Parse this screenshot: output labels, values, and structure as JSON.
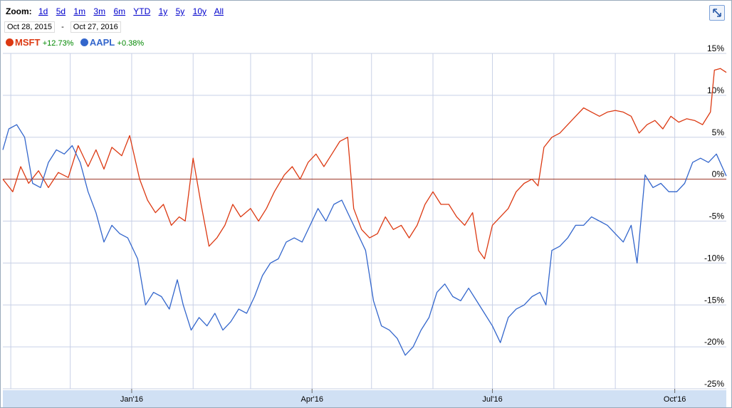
{
  "zoom": {
    "label": "Zoom:",
    "options": [
      "1d",
      "5d",
      "1m",
      "3m",
      "6m",
      "YTD",
      "1y",
      "5y",
      "10y",
      "All"
    ]
  },
  "range": {
    "start": "Oct 28, 2015",
    "separator": "-",
    "end": "Oct 27, 2016"
  },
  "legend": [
    {
      "symbol": "MSFT",
      "change": "+12.73%",
      "color": "#dc3912"
    },
    {
      "symbol": "AAPL",
      "change": "+0.38%",
      "color": "#3366cc"
    }
  ],
  "expand_icon": "expand-arrows-icon",
  "chart_data": {
    "type": "line",
    "y_unit": "%",
    "ylim": [
      -25,
      15
    ],
    "yticks": [
      {
        "v": 15,
        "label": "15%"
      },
      {
        "v": 10,
        "label": "10%"
      },
      {
        "v": 5,
        "label": "5%"
      },
      {
        "v": 0,
        "label": "0%"
      },
      {
        "v": -5,
        "label": "-5%"
      },
      {
        "v": -10,
        "label": "-10%"
      },
      {
        "v": -15,
        "label": "-15%"
      },
      {
        "v": -20,
        "label": "-20%"
      },
      {
        "v": -25,
        "label": "-25%"
      }
    ],
    "xlim": [
      "2015-10-28",
      "2016-10-27"
    ],
    "xticks": [
      {
        "date": "2016-01-01",
        "label": "Jan'16"
      },
      {
        "date": "2016-04-01",
        "label": "Apr'16"
      },
      {
        "date": "2016-07-01",
        "label": "Jul'16"
      },
      {
        "date": "2016-10-01",
        "label": "Oct'16"
      }
    ],
    "grid": true,
    "series": [
      {
        "name": "MSFT",
        "color": "#dc3912",
        "points": [
          [
            "2015-10-28",
            0
          ],
          [
            "2015-11-02",
            -1.5
          ],
          [
            "2015-11-06",
            1.5
          ],
          [
            "2015-11-10",
            -0.5
          ],
          [
            "2015-11-15",
            1.0
          ],
          [
            "2015-11-20",
            -1.0
          ],
          [
            "2015-11-25",
            0.8
          ],
          [
            "2015-11-30",
            0.2
          ],
          [
            "2015-12-05",
            4.0
          ],
          [
            "2015-12-10",
            1.5
          ],
          [
            "2015-12-14",
            3.5
          ],
          [
            "2015-12-18",
            1.2
          ],
          [
            "2015-12-22",
            3.8
          ],
          [
            "2015-12-27",
            2.8
          ],
          [
            "2015-12-31",
            5.2
          ],
          [
            "2016-01-05",
            0
          ],
          [
            "2016-01-09",
            -2.5
          ],
          [
            "2016-01-13",
            -4.0
          ],
          [
            "2016-01-17",
            -3.0
          ],
          [
            "2016-01-21",
            -5.5
          ],
          [
            "2016-01-25",
            -4.5
          ],
          [
            "2016-01-28",
            -5.0
          ],
          [
            "2016-02-01",
            2.5
          ],
          [
            "2016-02-05",
            -3.0
          ],
          [
            "2016-02-09",
            -8.0
          ],
          [
            "2016-02-13",
            -7.0
          ],
          [
            "2016-02-17",
            -5.5
          ],
          [
            "2016-02-21",
            -3.0
          ],
          [
            "2016-02-25",
            -4.5
          ],
          [
            "2016-03-01",
            -3.5
          ],
          [
            "2016-03-05",
            -5.0
          ],
          [
            "2016-03-09",
            -3.5
          ],
          [
            "2016-03-13",
            -1.5
          ],
          [
            "2016-03-18",
            0.5
          ],
          [
            "2016-03-22",
            1.5
          ],
          [
            "2016-03-26",
            0
          ],
          [
            "2016-03-30",
            2.0
          ],
          [
            "2016-04-03",
            3.0
          ],
          [
            "2016-04-07",
            1.5
          ],
          [
            "2016-04-11",
            3.0
          ],
          [
            "2016-04-15",
            4.5
          ],
          [
            "2016-04-19",
            5.0
          ],
          [
            "2016-04-22",
            -3.5
          ],
          [
            "2016-04-26",
            -6.0
          ],
          [
            "2016-04-30",
            -7.0
          ],
          [
            "2016-05-04",
            -6.5
          ],
          [
            "2016-05-08",
            -4.5
          ],
          [
            "2016-05-12",
            -6.0
          ],
          [
            "2016-05-16",
            -5.5
          ],
          [
            "2016-05-20",
            -7.0
          ],
          [
            "2016-05-24",
            -5.5
          ],
          [
            "2016-05-28",
            -3.0
          ],
          [
            "2016-06-01",
            -1.5
          ],
          [
            "2016-06-05",
            -3.0
          ],
          [
            "2016-06-09",
            -3.0
          ],
          [
            "2016-06-13",
            -4.5
          ],
          [
            "2016-06-17",
            -5.5
          ],
          [
            "2016-06-21",
            -4.0
          ],
          [
            "2016-06-24",
            -8.5
          ],
          [
            "2016-06-27",
            -9.5
          ],
          [
            "2016-07-01",
            -5.5
          ],
          [
            "2016-07-05",
            -4.5
          ],
          [
            "2016-07-09",
            -3.5
          ],
          [
            "2016-07-13",
            -1.5
          ],
          [
            "2016-07-17",
            -0.5
          ],
          [
            "2016-07-21",
            0
          ],
          [
            "2016-07-24",
            -0.8
          ],
          [
            "2016-07-27",
            3.8
          ],
          [
            "2016-07-31",
            5.0
          ],
          [
            "2016-08-04",
            5.5
          ],
          [
            "2016-08-08",
            6.5
          ],
          [
            "2016-08-12",
            7.5
          ],
          [
            "2016-08-16",
            8.5
          ],
          [
            "2016-08-20",
            8.0
          ],
          [
            "2016-08-24",
            7.5
          ],
          [
            "2016-08-28",
            8.0
          ],
          [
            "2016-09-01",
            8.2
          ],
          [
            "2016-09-05",
            8.0
          ],
          [
            "2016-09-09",
            7.5
          ],
          [
            "2016-09-13",
            5.5
          ],
          [
            "2016-09-17",
            6.5
          ],
          [
            "2016-09-21",
            7.0
          ],
          [
            "2016-09-25",
            6.0
          ],
          [
            "2016-09-29",
            7.5
          ],
          [
            "2016-10-03",
            6.8
          ],
          [
            "2016-10-07",
            7.2
          ],
          [
            "2016-10-11",
            7.0
          ],
          [
            "2016-10-15",
            6.5
          ],
          [
            "2016-10-19",
            8.0
          ],
          [
            "2016-10-21",
            13.0
          ],
          [
            "2016-10-24",
            13.2
          ],
          [
            "2016-10-27",
            12.73
          ]
        ]
      },
      {
        "name": "AAPL",
        "color": "#3366cc",
        "points": [
          [
            "2015-10-28",
            3.5
          ],
          [
            "2015-10-31",
            6.0
          ],
          [
            "2015-11-04",
            6.5
          ],
          [
            "2015-11-08",
            5.0
          ],
          [
            "2015-11-12",
            -0.5
          ],
          [
            "2015-11-16",
            -1.0
          ],
          [
            "2015-11-20",
            2.0
          ],
          [
            "2015-11-24",
            3.5
          ],
          [
            "2015-11-28",
            3.0
          ],
          [
            "2015-12-02",
            4.0
          ],
          [
            "2015-12-06",
            2.0
          ],
          [
            "2015-12-10",
            -1.5
          ],
          [
            "2015-12-14",
            -4.0
          ],
          [
            "2015-12-18",
            -7.5
          ],
          [
            "2015-12-22",
            -5.5
          ],
          [
            "2015-12-26",
            -6.5
          ],
          [
            "2015-12-30",
            -7.0
          ],
          [
            "2016-01-04",
            -9.5
          ],
          [
            "2016-01-08",
            -15.0
          ],
          [
            "2016-01-12",
            -13.5
          ],
          [
            "2016-01-16",
            -14.0
          ],
          [
            "2016-01-20",
            -15.5
          ],
          [
            "2016-01-24",
            -12.0
          ],
          [
            "2016-01-27",
            -15.0
          ],
          [
            "2016-01-31",
            -18.0
          ],
          [
            "2016-02-04",
            -16.5
          ],
          [
            "2016-02-08",
            -17.5
          ],
          [
            "2016-02-12",
            -16.0
          ],
          [
            "2016-02-16",
            -18.0
          ],
          [
            "2016-02-20",
            -17.0
          ],
          [
            "2016-02-24",
            -15.5
          ],
          [
            "2016-02-28",
            -16.0
          ],
          [
            "2016-03-03",
            -14.0
          ],
          [
            "2016-03-07",
            -11.5
          ],
          [
            "2016-03-11",
            -10.0
          ],
          [
            "2016-03-15",
            -9.5
          ],
          [
            "2016-03-19",
            -7.5
          ],
          [
            "2016-03-23",
            -7.0
          ],
          [
            "2016-03-27",
            -7.5
          ],
          [
            "2016-03-31",
            -5.5
          ],
          [
            "2016-04-04",
            -3.5
          ],
          [
            "2016-04-08",
            -5.0
          ],
          [
            "2016-04-12",
            -3.0
          ],
          [
            "2016-04-16",
            -2.5
          ],
          [
            "2016-04-20",
            -4.5
          ],
          [
            "2016-04-24",
            -6.5
          ],
          [
            "2016-04-28",
            -8.5
          ],
          [
            "2016-05-02",
            -14.5
          ],
          [
            "2016-05-06",
            -17.5
          ],
          [
            "2016-05-10",
            -18.0
          ],
          [
            "2016-05-14",
            -19.0
          ],
          [
            "2016-05-18",
            -21.0
          ],
          [
            "2016-05-22",
            -20.0
          ],
          [
            "2016-05-26",
            -18.0
          ],
          [
            "2016-05-30",
            -16.5
          ],
          [
            "2016-06-03",
            -13.5
          ],
          [
            "2016-06-07",
            -12.5
          ],
          [
            "2016-06-11",
            -14.0
          ],
          [
            "2016-06-15",
            -14.5
          ],
          [
            "2016-06-19",
            -13.0
          ],
          [
            "2016-06-23",
            -14.5
          ],
          [
            "2016-06-27",
            -16.0
          ],
          [
            "2016-07-01",
            -17.5
          ],
          [
            "2016-07-05",
            -19.5
          ],
          [
            "2016-07-09",
            -16.5
          ],
          [
            "2016-07-13",
            -15.5
          ],
          [
            "2016-07-17",
            -15.0
          ],
          [
            "2016-07-21",
            -14.0
          ],
          [
            "2016-07-25",
            -13.5
          ],
          [
            "2016-07-28",
            -15.0
          ],
          [
            "2016-07-31",
            -8.5
          ],
          [
            "2016-08-04",
            -8.0
          ],
          [
            "2016-08-08",
            -7.0
          ],
          [
            "2016-08-12",
            -5.5
          ],
          [
            "2016-08-16",
            -5.5
          ],
          [
            "2016-08-20",
            -4.5
          ],
          [
            "2016-08-24",
            -5.0
          ],
          [
            "2016-08-28",
            -5.5
          ],
          [
            "2016-09-01",
            -6.5
          ],
          [
            "2016-09-05",
            -7.5
          ],
          [
            "2016-09-09",
            -5.5
          ],
          [
            "2016-09-12",
            -10.0
          ],
          [
            "2016-09-16",
            0.5
          ],
          [
            "2016-09-20",
            -1.0
          ],
          [
            "2016-09-24",
            -0.5
          ],
          [
            "2016-09-28",
            -1.5
          ],
          [
            "2016-10-02",
            -1.5
          ],
          [
            "2016-10-06",
            -0.5
          ],
          [
            "2016-10-10",
            2.0
          ],
          [
            "2016-10-14",
            2.5
          ],
          [
            "2016-10-18",
            2.0
          ],
          [
            "2016-10-22",
            3.0
          ],
          [
            "2016-10-27",
            0.38
          ]
        ]
      }
    ]
  }
}
